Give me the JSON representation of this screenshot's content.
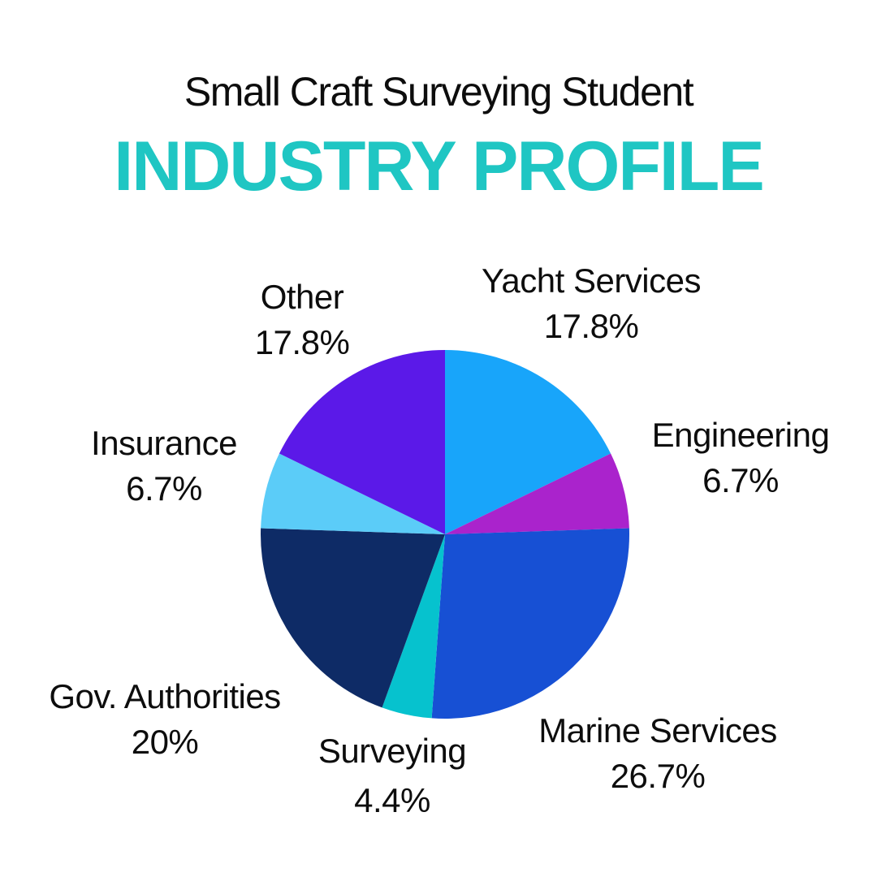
{
  "chart_data": {
    "type": "pie",
    "title": "Small Craft Surveying Student",
    "subtitle": "INDUSTRY PROFILE",
    "title_color": "#0d0d0d",
    "subtitle_color": "#1fc6c3",
    "background_color": "#ffffff",
    "legend_position": "none",
    "label_style": "category-and-percent-around-pie",
    "start_angle_deg": 0,
    "direction": "clockwise-from-top",
    "slices": [
      {
        "label": "Yacht Services",
        "value": 17.8,
        "pct_label": "17.8%",
        "color": "#18a5fa"
      },
      {
        "label": "Engineering",
        "value": 6.7,
        "pct_label": "6.7%",
        "color": "#aa23cc"
      },
      {
        "label": "Marine Services",
        "value": 26.7,
        "pct_label": "26.7%",
        "color": "#1750d4"
      },
      {
        "label": "Surveying",
        "value": 4.4,
        "pct_label": "4.4%",
        "color": "#06c2ce"
      },
      {
        "label": "Gov. Authorities",
        "value": 20,
        "pct_label": "20%",
        "color": "#0e2b66"
      },
      {
        "label": "Insurance",
        "value": 6.7,
        "pct_label": "6.7%",
        "color": "#5bccf8"
      },
      {
        "label": "Other",
        "value": 17.8,
        "pct_label": "17.8%",
        "color": "#5b19e8"
      }
    ]
  }
}
